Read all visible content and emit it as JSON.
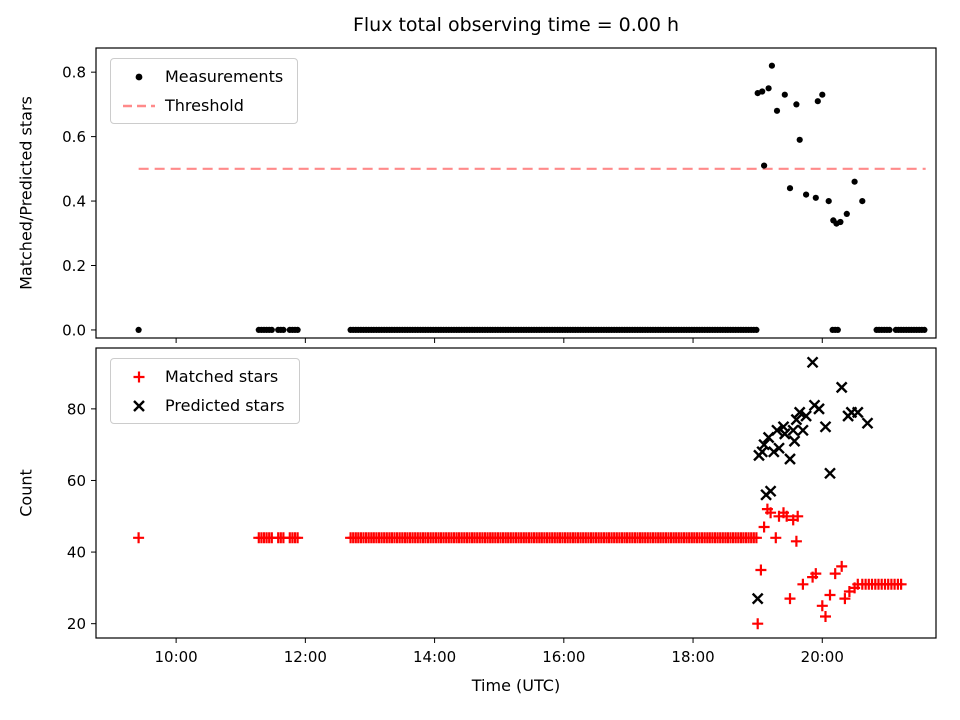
{
  "figure": {
    "title": "Flux total observing time = 0.00 h",
    "background": "#ffffff"
  },
  "x_axis": {
    "label": "Time (UTC)",
    "xlim": [
      8.76,
      21.76
    ],
    "ticks": [
      10,
      12,
      14,
      16,
      18,
      20
    ],
    "tick_labels": [
      "10:00",
      "12:00",
      "14:00",
      "16:00",
      "18:00",
      "20:00"
    ]
  },
  "chart_data": [
    {
      "type": "scatter",
      "title": "Flux total observing time = 0.00 h",
      "ylabel": "Matched/Predicted stars",
      "ylim": [
        -0.025,
        0.875
      ],
      "yticks": [
        0.0,
        0.2,
        0.4,
        0.6,
        0.8
      ],
      "ytick_labels": [
        "0.0",
        "0.2",
        "0.4",
        "0.6",
        "0.8"
      ],
      "grid": false,
      "legend_position": "upper-left",
      "legend": [
        {
          "label": "Measurements",
          "marker": "dot",
          "color": "#000000"
        },
        {
          "label": "Threshold",
          "marker": "dashed-line",
          "color": "#ff8a8a"
        }
      ],
      "threshold": {
        "y": 0.5,
        "x_start": 9.42,
        "x_end": 21.6,
        "color": "#ff8a8a",
        "style": "dashed"
      },
      "series": [
        {
          "name": "Measurements",
          "marker": "dot",
          "color": "#000000",
          "runs": [
            [
              9.42,
              9.42,
              1,
              0
            ],
            [
              11.28,
              11.48,
              0.04,
              0
            ],
            [
              11.58,
              11.66,
              0.04,
              0
            ],
            [
              11.76,
              11.88,
              0.04,
              0
            ],
            [
              12.7,
              18.98,
              0.04,
              0
            ],
            [
              20.16,
              20.24,
              0.04,
              0
            ],
            [
              20.84,
              21.06,
              0.04,
              0
            ],
            [
              21.14,
              21.6,
              0.04,
              0
            ]
          ],
          "points": [
            [
              19.0,
              0.735
            ],
            [
              19.07,
              0.74
            ],
            [
              19.1,
              0.51
            ],
            [
              19.17,
              0.75
            ],
            [
              19.22,
              0.82
            ],
            [
              19.3,
              0.68
            ],
            [
              19.42,
              0.73
            ],
            [
              19.5,
              0.44
            ],
            [
              19.6,
              0.7
            ],
            [
              19.65,
              0.59
            ],
            [
              19.75,
              0.42
            ],
            [
              19.9,
              0.41
            ],
            [
              19.93,
              0.71
            ],
            [
              20.0,
              0.73
            ],
            [
              20.1,
              0.4
            ],
            [
              20.17,
              0.34
            ],
            [
              20.22,
              0.33
            ],
            [
              20.28,
              0.335
            ],
            [
              20.38,
              0.36
            ],
            [
              20.5,
              0.46
            ],
            [
              20.62,
              0.4
            ]
          ]
        }
      ]
    },
    {
      "type": "scatter",
      "ylabel": "Count",
      "ylim": [
        16,
        97
      ],
      "yticks": [
        20,
        40,
        60,
        80
      ],
      "ytick_labels": [
        "20",
        "40",
        "60",
        "80"
      ],
      "grid": false,
      "legend_position": "upper-left",
      "legend": [
        {
          "label": "Matched stars",
          "marker": "plus",
          "color": "#ff0000"
        },
        {
          "label": "Predicted stars",
          "marker": "x",
          "color": "#000000"
        }
      ],
      "series": [
        {
          "name": "Matched stars",
          "marker": "plus",
          "color": "#ff0000",
          "runs": [
            [
              9.42,
              9.42,
              1,
              44
            ],
            [
              11.28,
              11.48,
              0.04,
              44
            ],
            [
              11.58,
              11.66,
              0.04,
              44
            ],
            [
              11.76,
              11.88,
              0.04,
              44
            ],
            [
              12.7,
              18.98,
              0.04,
              44
            ],
            [
              20.62,
              21.22,
              0.05,
              31
            ]
          ],
          "points": [
            [
              19.0,
              20
            ],
            [
              19.05,
              35
            ],
            [
              19.1,
              47
            ],
            [
              19.15,
              52
            ],
            [
              19.2,
              51
            ],
            [
              19.28,
              44
            ],
            [
              19.33,
              50
            ],
            [
              19.4,
              51
            ],
            [
              19.45,
              50
            ],
            [
              19.5,
              27
            ],
            [
              19.55,
              49
            ],
            [
              19.6,
              43
            ],
            [
              19.62,
              50
            ],
            [
              19.7,
              31
            ],
            [
              19.85,
              33
            ],
            [
              19.9,
              34
            ],
            [
              20.0,
              25
            ],
            [
              20.05,
              22
            ],
            [
              20.12,
              28
            ],
            [
              20.2,
              34
            ],
            [
              20.3,
              36
            ],
            [
              20.35,
              27
            ],
            [
              20.42,
              29
            ],
            [
              20.5,
              30
            ],
            [
              20.55,
              31
            ]
          ]
        },
        {
          "name": "Predicted stars",
          "marker": "x",
          "color": "#000000",
          "runs": [],
          "points": [
            [
              19.0,
              27
            ],
            [
              19.02,
              67
            ],
            [
              19.07,
              68
            ],
            [
              19.1,
              70
            ],
            [
              19.13,
              56
            ],
            [
              19.17,
              72
            ],
            [
              19.2,
              57
            ],
            [
              19.25,
              68
            ],
            [
              19.3,
              74
            ],
            [
              19.33,
              69
            ],
            [
              19.4,
              75
            ],
            [
              19.42,
              73
            ],
            [
              19.5,
              66
            ],
            [
              19.55,
              74
            ],
            [
              19.57,
              71
            ],
            [
              19.6,
              77
            ],
            [
              19.65,
              79
            ],
            [
              19.7,
              74
            ],
            [
              19.75,
              78
            ],
            [
              19.85,
              93
            ],
            [
              19.88,
              81
            ],
            [
              19.95,
              80
            ],
            [
              20.05,
              75
            ],
            [
              20.12,
              62
            ],
            [
              20.3,
              86
            ],
            [
              20.4,
              78
            ],
            [
              20.45,
              79
            ],
            [
              20.55,
              79
            ],
            [
              20.7,
              76
            ]
          ]
        }
      ]
    }
  ]
}
